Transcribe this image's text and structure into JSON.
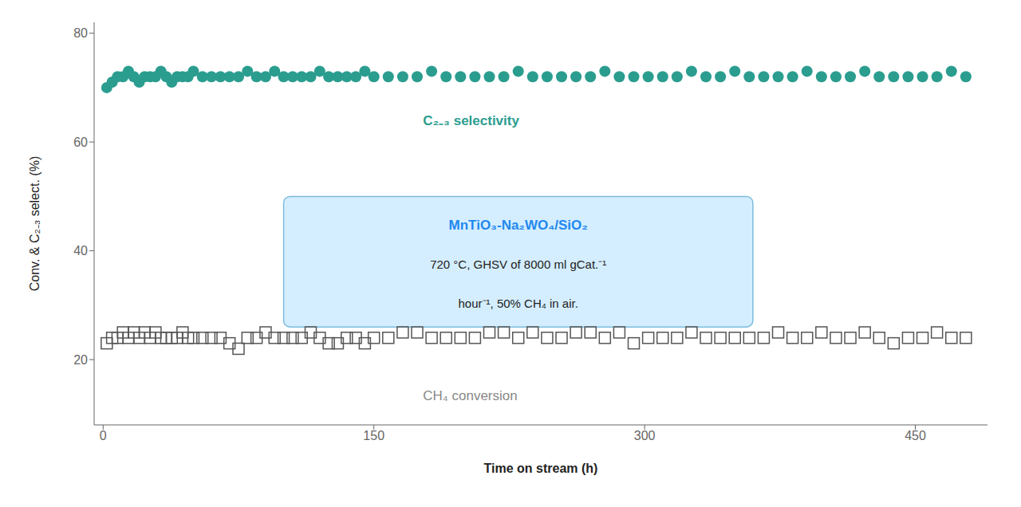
{
  "chart_data": {
    "type": "scatter",
    "xlabel": "Time on stream (h)",
    "ylabel": "Conv. & C₂₋₃ select. (%)",
    "xlim": [
      -5,
      490
    ],
    "ylim": [
      8,
      82
    ],
    "xticks": [
      0,
      150,
      300,
      450
    ],
    "yticks": [
      20,
      40,
      60,
      80
    ],
    "grid": false,
    "series": [
      {
        "color": "#2a9d8f",
        "marker": "circle",
        "x": [
          2,
          5,
          8,
          11,
          14,
          17,
          20,
          23,
          26,
          29,
          32,
          35,
          38,
          41,
          44,
          47,
          50,
          55,
          60,
          65,
          70,
          75,
          80,
          85,
          90,
          95,
          100,
          105,
          110,
          115,
          120,
          125,
          130,
          135,
          140,
          145,
          150,
          158,
          166,
          174,
          182,
          190,
          198,
          206,
          214,
          222,
          230,
          238,
          246,
          254,
          262,
          270,
          278,
          286,
          294,
          302,
          310,
          318,
          326,
          334,
          342,
          350,
          358,
          366,
          374,
          382,
          390,
          398,
          406,
          414,
          422,
          430,
          438,
          446,
          454,
          462,
          470,
          478
        ],
        "values": [
          70,
          71,
          72,
          72,
          73,
          72,
          71,
          72,
          72,
          72,
          73,
          72,
          71,
          72,
          72,
          72,
          73,
          72,
          72,
          72,
          72,
          72,
          73,
          72,
          72,
          73,
          72,
          72,
          72,
          72,
          73,
          72,
          72,
          72,
          72,
          73,
          72,
          72,
          72,
          72,
          73,
          72,
          72,
          72,
          72,
          72,
          73,
          72,
          72,
          72,
          72,
          72,
          73,
          72,
          72,
          72,
          72,
          72,
          73,
          72,
          72,
          73,
          72,
          72,
          72,
          72,
          73,
          72,
          72,
          72,
          73,
          72,
          72,
          72,
          72,
          72,
          73,
          72
        ]
      },
      {
        "color": "#555555",
        "marker": "open_square",
        "x": [
          2,
          5,
          8,
          11,
          14,
          17,
          20,
          23,
          26,
          29,
          32,
          35,
          38,
          41,
          44,
          47,
          50,
          55,
          60,
          65,
          70,
          75,
          80,
          85,
          90,
          95,
          100,
          105,
          110,
          115,
          120,
          125,
          130,
          135,
          140,
          145,
          150,
          158,
          166,
          174,
          182,
          190,
          198,
          206,
          214,
          222,
          230,
          238,
          246,
          254,
          262,
          270,
          278,
          286,
          294,
          302,
          310,
          318,
          326,
          334,
          342,
          350,
          358,
          366,
          374,
          382,
          390,
          398,
          406,
          414,
          422,
          430,
          438,
          446,
          454,
          462,
          470,
          478
        ],
        "values": [
          23,
          24,
          24,
          25,
          24,
          25,
          24,
          25,
          24,
          25,
          24,
          24,
          24,
          24,
          25,
          24,
          24,
          24,
          24,
          24,
          23,
          22,
          24,
          24,
          25,
          24,
          24,
          24,
          24,
          25,
          24,
          23,
          23,
          24,
          24,
          23,
          24,
          24,
          25,
          25,
          24,
          24,
          24,
          24,
          25,
          25,
          24,
          25,
          24,
          24,
          25,
          25,
          24,
          25,
          23,
          24,
          24,
          24,
          25,
          24,
          24,
          24,
          24,
          24,
          25,
          24,
          24,
          25,
          24,
          24,
          25,
          24,
          23,
          24,
          24,
          25,
          24,
          24
        ]
      }
    ],
    "annotations": [
      {
        "text": "C₂₋₃ selectivity",
        "x": 175,
        "y": 64,
        "color": "#2a9d8f"
      },
      {
        "text": "CH₄ conversion",
        "x": 175,
        "y": 13.5,
        "color": "#888888"
      }
    ],
    "box_annotation": {
      "x": 100,
      "y": 26,
      "w": 260,
      "h": 24,
      "title": "MnTiO₃-Na₂WO₄/SiO₂",
      "lines": [
        "720 °C, GHSV of 8000 ml gCat.⁻¹",
        "hour⁻¹, 50% CH₄ in air."
      ],
      "title_color": "#2288ee",
      "text_color": "#222222",
      "color": "#d4eeff",
      "edge_color": "#7bbcdd"
    }
  }
}
